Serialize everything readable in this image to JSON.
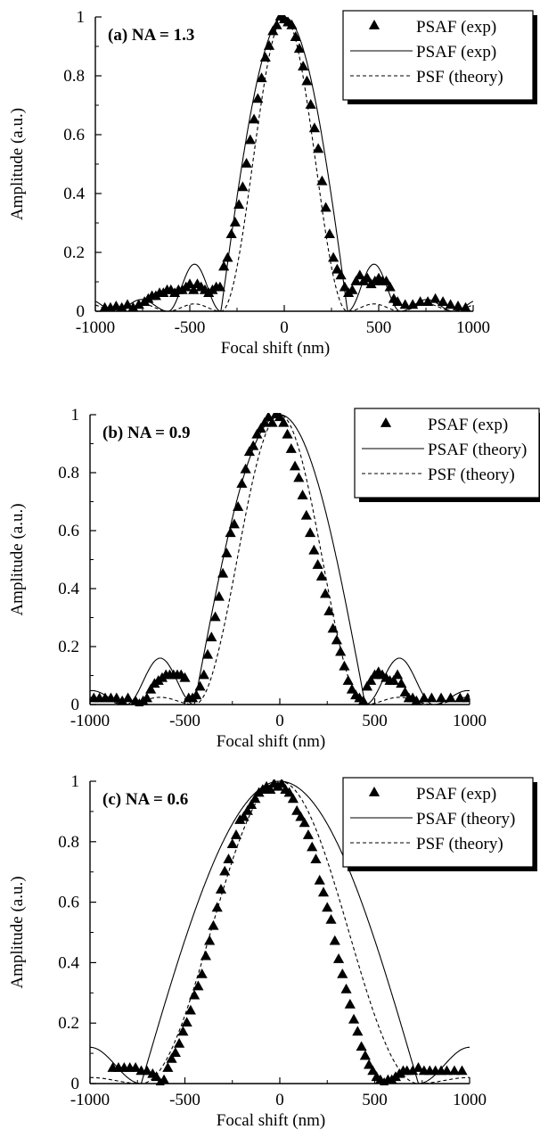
{
  "chart_data": [
    {
      "type": "line",
      "panel_label": "(a)  NA  =  1.3",
      "xlabel": "Focal shift (nm)",
      "ylabel": "Amplitude (a.u.)",
      "xlim": [
        -1000,
        1000
      ],
      "ylim": [
        0,
        1
      ],
      "xticks": [
        -1000,
        -500,
        0,
        500,
        1000
      ],
      "yticks": [
        0,
        0.2,
        0.4,
        0.6,
        0.8,
        1
      ],
      "xtick_labels": [
        "-1000",
        "-500",
        "0",
        "500",
        "1000"
      ],
      "ytick_labels": [
        "0",
        "0.2",
        "0.4",
        "0.6",
        "0.8",
        "1"
      ],
      "grid": false,
      "legend_position": "top-right",
      "series": [
        {
          "name": "PSAF (exp)",
          "style": "triangles",
          "x": [
            -950,
            -920,
            -890,
            -860,
            -830,
            -800,
            -770,
            -740,
            -720,
            -700,
            -680,
            -660,
            -640,
            -620,
            -600,
            -580,
            -560,
            -540,
            -520,
            -500,
            -480,
            -460,
            -440,
            -420,
            -400,
            -380,
            -360,
            -340,
            -320,
            -300,
            -280,
            -260,
            -240,
            -220,
            -200,
            -180,
            -160,
            -140,
            -120,
            -100,
            -80,
            -60,
            -40,
            -20,
            0,
            20,
            40,
            60,
            80,
            100,
            120,
            140,
            160,
            180,
            200,
            220,
            240,
            260,
            280,
            300,
            320,
            340,
            360,
            380,
            400,
            420,
            440,
            460,
            480,
            500,
            520,
            540,
            560,
            580,
            600,
            640,
            680,
            720,
            760,
            800,
            840,
            880,
            920,
            960
          ],
          "y": [
            0.01,
            0.01,
            0.015,
            0.01,
            0.02,
            0.01,
            0.02,
            0.03,
            0.04,
            0.05,
            0.05,
            0.06,
            0.06,
            0.07,
            0.07,
            0.06,
            0.07,
            0.07,
            0.08,
            0.09,
            0.07,
            0.09,
            0.08,
            0.07,
            0.06,
            0.07,
            0.08,
            0.08,
            0.15,
            0.18,
            0.26,
            0.3,
            0.36,
            0.42,
            0.5,
            0.58,
            0.65,
            0.72,
            0.79,
            0.86,
            0.9,
            0.95,
            0.97,
            1.0,
            0.99,
            0.98,
            0.97,
            0.93,
            0.89,
            0.83,
            0.78,
            0.7,
            0.62,
            0.55,
            0.44,
            0.35,
            0.26,
            0.18,
            0.14,
            0.12,
            0.08,
            0.06,
            0.07,
            0.1,
            0.12,
            0.1,
            0.11,
            0.09,
            0.1,
            0.11,
            0.1,
            0.1,
            0.08,
            0.04,
            0.03,
            0.02,
            0.02,
            0.03,
            0.03,
            0.04,
            0.03,
            0.02,
            0.015,
            0.01
          ]
        },
        {
          "name": "PSAF (exp)",
          "style": "solid"
        },
        {
          "name": "PSF (theory)",
          "style": "dashed"
        }
      ]
    },
    {
      "type": "line",
      "panel_label": "(b)  NA  =  0.9",
      "xlabel": "Focal shift (nm)",
      "ylabel": "Amplitude (a.u.)",
      "xlim": [
        -1000,
        1000
      ],
      "ylim": [
        0,
        1
      ],
      "xticks": [
        -1000,
        -500,
        0,
        500,
        1000
      ],
      "yticks": [
        0,
        0.2,
        0.4,
        0.6,
        0.8,
        1
      ],
      "xtick_labels": [
        "-1000",
        "-500",
        "0",
        "500",
        "1000"
      ],
      "ytick_labels": [
        "0",
        "0.2",
        "0.4",
        "0.6",
        "0.8",
        "1"
      ],
      "grid": false,
      "legend_position": "top-right",
      "series": [
        {
          "name": "PSAF (exp)",
          "style": "triangles",
          "x": [
            -980,
            -950,
            -920,
            -890,
            -860,
            -830,
            -800,
            -760,
            -740,
            -720,
            -700,
            -680,
            -660,
            -640,
            -620,
            -600,
            -580,
            -560,
            -540,
            -520,
            -500,
            -480,
            -460,
            -440,
            -420,
            -400,
            -380,
            -360,
            -340,
            -320,
            -300,
            -280,
            -260,
            -240,
            -220,
            -200,
            -180,
            -160,
            -140,
            -120,
            -100,
            -80,
            -60,
            -40,
            -20,
            0,
            20,
            40,
            60,
            80,
            100,
            120,
            140,
            160,
            180,
            200,
            220,
            240,
            260,
            280,
            300,
            320,
            340,
            360,
            380,
            400,
            420,
            440,
            460,
            480,
            500,
            520,
            540,
            560,
            580,
            600,
            620,
            640,
            660,
            680,
            700,
            720,
            760,
            800,
            850,
            900,
            950,
            990
          ],
          "y": [
            0.02,
            0.02,
            0.02,
            0.02,
            0.02,
            0.01,
            0.02,
            0.01,
            0.0,
            0.01,
            0.02,
            0.05,
            0.07,
            0.08,
            0.09,
            0.1,
            0.1,
            0.1,
            0.1,
            0.1,
            0.09,
            0.02,
            0.02,
            0.03,
            0.06,
            0.1,
            0.17,
            0.23,
            0.3,
            0.37,
            0.45,
            0.52,
            0.59,
            0.62,
            0.68,
            0.76,
            0.81,
            0.87,
            0.89,
            0.93,
            0.95,
            0.97,
            0.99,
            0.97,
            1.0,
            0.99,
            0.97,
            0.93,
            0.88,
            0.82,
            0.78,
            0.72,
            0.65,
            0.59,
            0.53,
            0.48,
            0.44,
            0.38,
            0.32,
            0.26,
            0.22,
            0.18,
            0.13,
            0.08,
            0.05,
            0.03,
            0.02,
            0.01,
            0.06,
            0.08,
            0.1,
            0.11,
            0.1,
            0.09,
            0.08,
            0.08,
            0.1,
            0.07,
            0.04,
            0.02,
            0.02,
            0.01,
            0.02,
            0.02,
            0.02,
            0.02,
            0.02,
            0.02
          ]
        },
        {
          "name": "PSAF (theory)",
          "style": "solid"
        },
        {
          "name": "PSF (theory)",
          "style": "dashed"
        }
      ]
    },
    {
      "type": "line",
      "panel_label": "(c)  NA  =  0.6",
      "xlabel": "Focal shift (nm)",
      "ylabel": "Amplitude (a.u.)",
      "xlim": [
        -1000,
        1000
      ],
      "ylim": [
        0,
        1
      ],
      "xticks": [
        -1000,
        -500,
        0,
        500,
        1000
      ],
      "yticks": [
        0,
        0.2,
        0.4,
        0.6,
        0.8,
        1
      ],
      "xtick_labels": [
        "-1000",
        "-500",
        "0",
        "500",
        "1000"
      ],
      "ytick_labels": [
        "0",
        "0.2",
        "0.4",
        "0.6",
        "0.8",
        "1"
      ],
      "grid": false,
      "legend_position": "top-right",
      "series": [
        {
          "name": "PSAF (exp)",
          "style": "triangles",
          "x": [
            -880,
            -850,
            -820,
            -790,
            -760,
            -730,
            -700,
            -670,
            -650,
            -630,
            -610,
            -590,
            -570,
            -550,
            -530,
            -510,
            -490,
            -470,
            -450,
            -430,
            -410,
            -390,
            -370,
            -350,
            -330,
            -310,
            -290,
            -270,
            -250,
            -230,
            -210,
            -190,
            -170,
            -150,
            -130,
            -110,
            -90,
            -70,
            -50,
            -30,
            -10,
            10,
            30,
            50,
            70,
            90,
            110,
            130,
            150,
            170,
            190,
            210,
            230,
            250,
            270,
            290,
            310,
            330,
            350,
            370,
            390,
            410,
            430,
            450,
            470,
            490,
            510,
            530,
            550,
            570,
            590,
            610,
            630,
            650,
            670,
            700,
            730,
            760,
            790,
            820,
            850,
            880,
            920,
            960
          ],
          "y": [
            0.05,
            0.05,
            0.05,
            0.05,
            0.05,
            0.04,
            0.04,
            0.03,
            0.02,
            0.0,
            0.01,
            0.05,
            0.08,
            0.1,
            0.13,
            0.17,
            0.2,
            0.24,
            0.29,
            0.32,
            0.36,
            0.42,
            0.47,
            0.52,
            0.58,
            0.64,
            0.7,
            0.74,
            0.79,
            0.82,
            0.87,
            0.88,
            0.9,
            0.92,
            0.94,
            0.96,
            0.97,
            0.98,
            0.97,
            0.99,
            0.98,
            0.99,
            0.97,
            0.96,
            0.94,
            0.9,
            0.88,
            0.86,
            0.82,
            0.78,
            0.74,
            0.67,
            0.63,
            0.58,
            0.54,
            0.47,
            0.41,
            0.36,
            0.31,
            0.26,
            0.21,
            0.17,
            0.12,
            0.09,
            0.06,
            0.04,
            0.02,
            0.01,
            0.0,
            0.01,
            0.01,
            0.02,
            0.03,
            0.04,
            0.04,
            0.04,
            0.05,
            0.04,
            0.04,
            0.04,
            0.04,
            0.04,
            0.04,
            0.04
          ]
        },
        {
          "name": "PSAF (theory)",
          "style": "solid"
        },
        {
          "name": "PSF (theory)",
          "style": "dashed"
        }
      ]
    }
  ]
}
